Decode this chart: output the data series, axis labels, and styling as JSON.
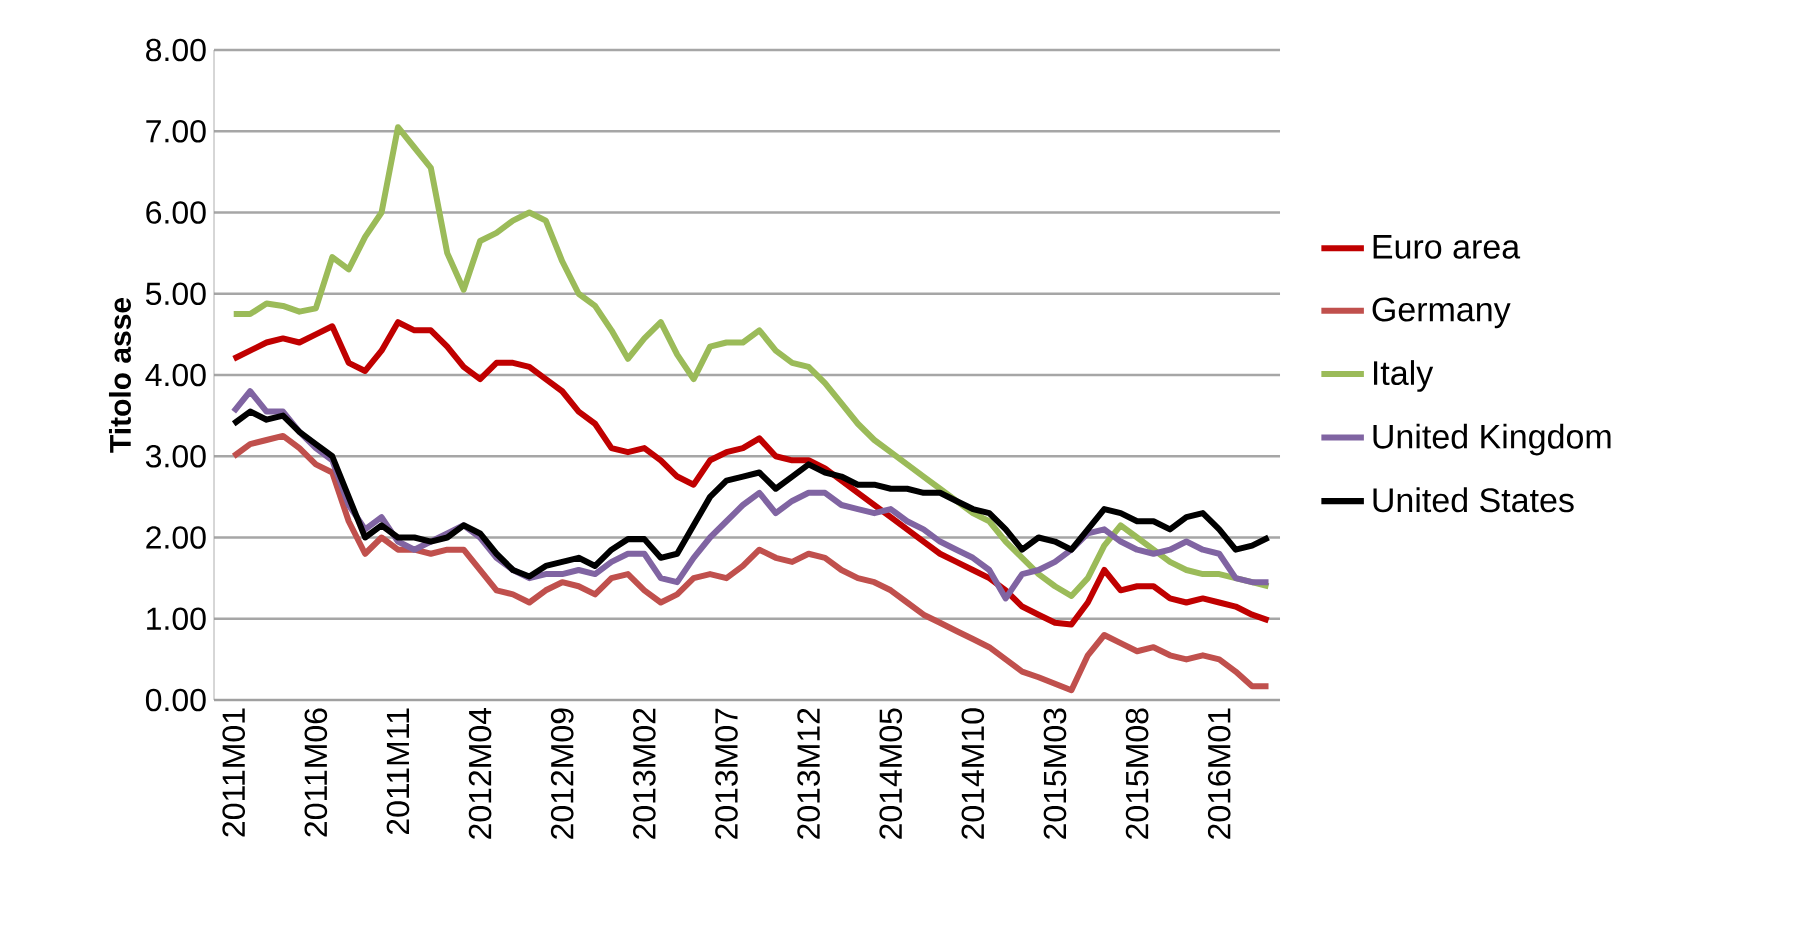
{
  "chart_data": {
    "type": "line",
    "ylabel": "Titolo asse",
    "categories": [
      "2011M01",
      null,
      null,
      null,
      null,
      "2011M06",
      null,
      null,
      null,
      null,
      "2011M11",
      null,
      null,
      null,
      null,
      "2012M04",
      null,
      null,
      null,
      null,
      "2012M09",
      null,
      null,
      null,
      null,
      "2013M02",
      null,
      null,
      null,
      null,
      "2013M07",
      null,
      null,
      null,
      null,
      "2013M12",
      null,
      null,
      null,
      null,
      "2014M05",
      null,
      null,
      null,
      null,
      "2014M10",
      null,
      null,
      null,
      null,
      "2015M03",
      null,
      null,
      null,
      null,
      "2015M08",
      null,
      null,
      null,
      null,
      "2016M01",
      null,
      null,
      null
    ],
    "series": [
      {
        "name": "Euro area",
        "color": "#c00000",
        "values": [
          4.2,
          4.3,
          4.4,
          4.45,
          4.4,
          4.5,
          4.6,
          4.15,
          4.05,
          4.3,
          4.65,
          4.55,
          4.55,
          4.35,
          4.1,
          3.95,
          4.15,
          4.15,
          4.1,
          3.95,
          3.8,
          3.55,
          3.4,
          3.1,
          3.05,
          3.1,
          2.95,
          2.75,
          2.65,
          2.95,
          3.05,
          3.1,
          3.22,
          3.0,
          2.95,
          2.95,
          2.85,
          2.7,
          2.55,
          2.4,
          2.25,
          2.1,
          1.95,
          1.8,
          1.7,
          1.6,
          1.5,
          1.35,
          1.15,
          1.05,
          0.95,
          0.93,
          1.2,
          1.6,
          1.35,
          1.4,
          1.4,
          1.25,
          1.2,
          1.25,
          1.2,
          1.15,
          1.05,
          0.98
        ]
      },
      {
        "name": "Germany",
        "color": "#c0504d",
        "values": [
          3.0,
          3.15,
          3.2,
          3.25,
          3.1,
          2.9,
          2.8,
          2.2,
          1.8,
          2.0,
          1.85,
          1.85,
          1.8,
          1.85,
          1.85,
          1.6,
          1.35,
          1.3,
          1.2,
          1.35,
          1.45,
          1.4,
          1.3,
          1.5,
          1.55,
          1.35,
          1.2,
          1.3,
          1.5,
          1.55,
          1.5,
          1.65,
          1.85,
          1.75,
          1.7,
          1.8,
          1.75,
          1.6,
          1.5,
          1.45,
          1.35,
          1.2,
          1.05,
          0.95,
          0.85,
          0.75,
          0.65,
          0.5,
          0.35,
          0.28,
          0.2,
          0.12,
          0.55,
          0.8,
          0.7,
          0.6,
          0.65,
          0.55,
          0.5,
          0.55,
          0.5,
          0.35,
          0.17,
          0.17
        ]
      },
      {
        "name": "Italy",
        "color": "#9bbb59",
        "values": [
          4.75,
          4.75,
          4.88,
          4.85,
          4.78,
          4.82,
          5.45,
          5.3,
          5.7,
          6.0,
          7.05,
          6.8,
          6.55,
          5.5,
          5.05,
          5.65,
          5.75,
          5.9,
          6.0,
          5.9,
          5.4,
          5.0,
          4.85,
          4.55,
          4.2,
          4.45,
          4.65,
          4.25,
          3.95,
          4.35,
          4.4,
          4.4,
          4.55,
          4.3,
          4.15,
          4.1,
          3.9,
          3.65,
          3.4,
          3.2,
          3.05,
          2.9,
          2.75,
          2.6,
          2.45,
          2.3,
          2.2,
          1.95,
          1.75,
          1.55,
          1.4,
          1.28,
          1.5,
          1.9,
          2.15,
          2.0,
          1.85,
          1.7,
          1.6,
          1.55,
          1.55,
          1.5,
          1.45,
          1.4
        ]
      },
      {
        "name": "United Kingdom",
        "color": "#8064a2",
        "values": [
          3.55,
          3.8,
          3.55,
          3.55,
          3.3,
          3.1,
          2.95,
          2.4,
          2.1,
          2.25,
          1.95,
          1.85,
          1.95,
          2.05,
          2.15,
          2.0,
          1.75,
          1.6,
          1.5,
          1.55,
          1.55,
          1.6,
          1.55,
          1.7,
          1.8,
          1.8,
          1.5,
          1.45,
          1.75,
          2.0,
          2.2,
          2.4,
          2.55,
          2.3,
          2.45,
          2.55,
          2.55,
          2.4,
          2.35,
          2.3,
          2.35,
          2.2,
          2.1,
          1.95,
          1.85,
          1.75,
          1.6,
          1.25,
          1.55,
          1.6,
          1.7,
          1.85,
          2.05,
          2.1,
          1.95,
          1.85,
          1.8,
          1.85,
          1.95,
          1.85,
          1.8,
          1.5,
          1.45,
          1.45
        ]
      },
      {
        "name": "United States",
        "color": "#000000",
        "values": [
          3.4,
          3.55,
          3.45,
          3.5,
          3.3,
          3.15,
          3.0,
          2.5,
          2.0,
          2.15,
          2.0,
          2.0,
          1.95,
          2.0,
          2.15,
          2.05,
          1.8,
          1.6,
          1.52,
          1.65,
          1.7,
          1.75,
          1.65,
          1.85,
          1.98,
          1.98,
          1.75,
          1.8,
          2.15,
          2.5,
          2.7,
          2.75,
          2.8,
          2.6,
          2.75,
          2.9,
          2.8,
          2.75,
          2.65,
          2.65,
          2.6,
          2.6,
          2.55,
          2.55,
          2.45,
          2.35,
          2.3,
          2.1,
          1.85,
          2.0,
          1.95,
          1.85,
          2.1,
          2.35,
          2.3,
          2.2,
          2.2,
          2.1,
          2.25,
          2.3,
          2.1,
          1.85,
          1.9,
          2.0
        ]
      }
    ],
    "ylim": [
      0,
      8
    ],
    "yticks": [
      {
        "value": 0,
        "label": "0.00"
      },
      {
        "value": 1,
        "label": "1.00"
      },
      {
        "value": 2,
        "label": "2.00"
      },
      {
        "value": 3,
        "label": "3.00"
      },
      {
        "value": 4,
        "label": "4.00"
      },
      {
        "value": 5,
        "label": "5.00"
      },
      {
        "value": 6,
        "label": "6.00"
      },
      {
        "value": 7,
        "label": "7.00"
      },
      {
        "value": 8,
        "label": "8.00"
      }
    ],
    "grid": "y",
    "legend": "right",
    "marker": "none",
    "line_style": "solid"
  }
}
